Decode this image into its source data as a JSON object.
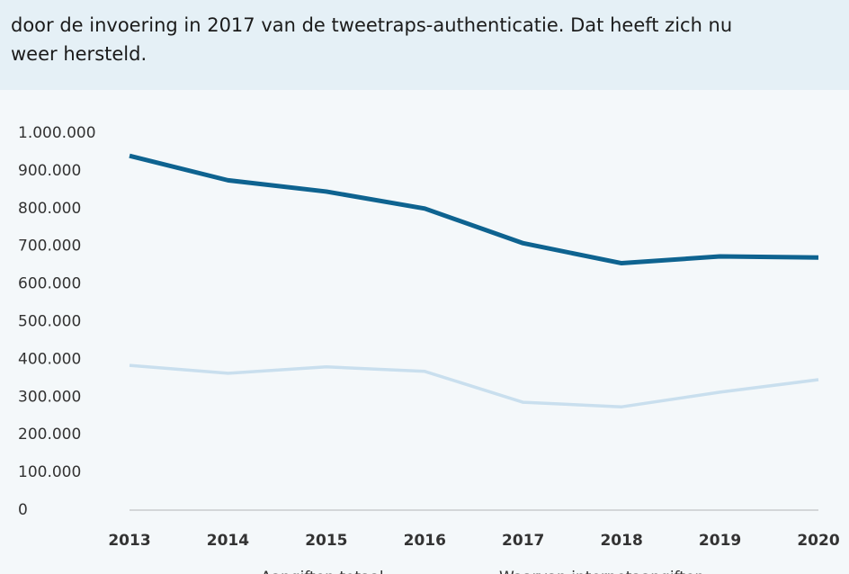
{
  "intro": {
    "lines": [
      "door de invoering in 2017 van de tweetraps-authenticatie. Dat heeft zich nu",
      "weer hersteld."
    ]
  },
  "chart_data": {
    "type": "line",
    "categories": [
      "2013",
      "2014",
      "2015",
      "2016",
      "2017",
      "2018",
      "2019",
      "2020"
    ],
    "series": [
      {
        "name": "Aangiften totaal",
        "color": "#0e6390",
        "values": [
          940000,
          875000,
          845000,
          800000,
          708000,
          655000,
          673000,
          670000
        ]
      },
      {
        "name": "Waarvan internetaangiften",
        "color": "#c9dfee",
        "values": [
          384000,
          363000,
          380000,
          368000,
          286000,
          274000,
          313000,
          346000
        ]
      }
    ],
    "ylim": [
      0,
      1000000
    ],
    "yticks": [
      0,
      {
        "value": 100000,
        "label": "100.000"
      },
      {
        "value": 200000,
        "label": "200.000"
      },
      {
        "value": 300000,
        "label": "300.000"
      },
      {
        "value": 400000,
        "label": "400.000"
      },
      {
        "value": 500000,
        "label": "500.000"
      },
      {
        "value": 600000,
        "label": "600.000"
      },
      {
        "value": 700000,
        "label": "700.000"
      },
      {
        "value": 800000,
        "label": "800.000"
      },
      {
        "value": 900000,
        "label": "900.000"
      },
      {
        "value": 1000000,
        "label": "1.000.000"
      }
    ]
  }
}
